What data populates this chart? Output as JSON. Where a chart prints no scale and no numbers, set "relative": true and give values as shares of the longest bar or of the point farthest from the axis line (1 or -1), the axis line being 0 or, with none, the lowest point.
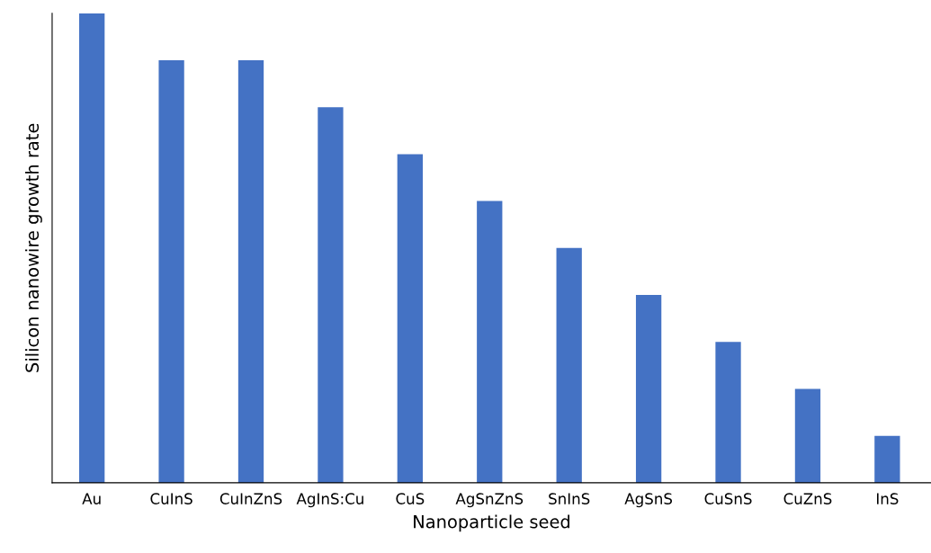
{
  "chart_data": {
    "type": "bar",
    "relative": true,
    "xlabel": "Nanoparticle seed",
    "ylabel": "Silicon nanowire growth rate",
    "categories": [
      "Au",
      "CuInS",
      "CuInZnS",
      "AgInS:Cu",
      "CuS",
      "AgSnZnS",
      "SnInS",
      "AgSnS",
      "CuSnS",
      "CuZnS",
      "InS"
    ],
    "values": [
      1,
      0.9,
      0.9,
      0.8,
      0.7,
      0.6,
      0.5,
      0.4,
      0.3,
      0.2,
      0.1
    ],
    "color": "#4472c4",
    "grid": false,
    "legend": false
  }
}
